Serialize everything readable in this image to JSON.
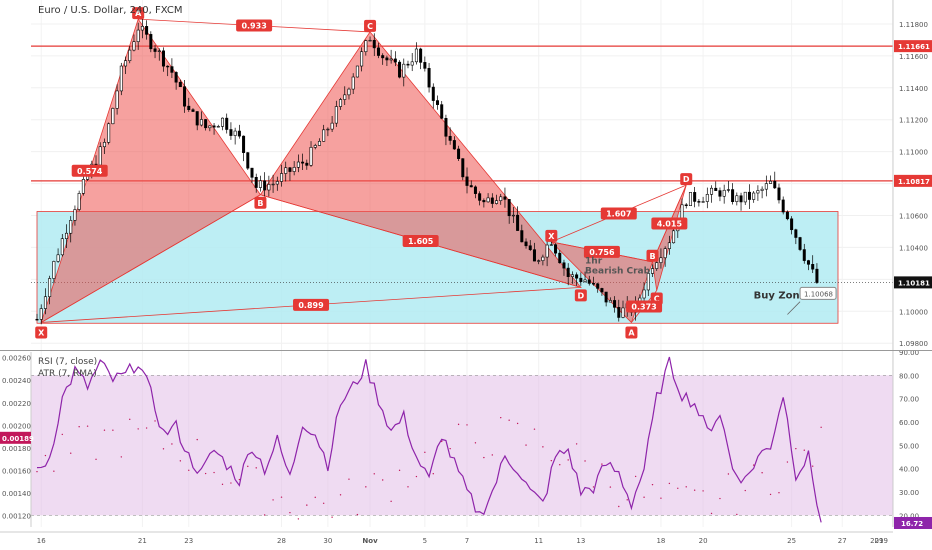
{
  "header": {
    "title": "Euro / U.S. Dollar, 240, FXCM"
  },
  "indicators": {
    "rsi_label": "RSI (7, close)",
    "atr_label": "ATR (7, RMA)"
  },
  "colors": {
    "hline": "#e53935",
    "pattern_fill": "#ef5350",
    "zone_fill": "#b2ebf2",
    "zone_border": "#e53935",
    "rsi_line": "#8e24aa",
    "rsi_band": "#e1bee7",
    "atr_dots": "#c2185b",
    "candle": "#000000"
  },
  "chart_data": [
    {
      "type": "candlestick",
      "title": "Euro / U.S. Dollar, 240, FXCM",
      "x_ticks": [
        "16",
        "21",
        "23",
        "28",
        "30",
        "Nov",
        "5",
        "7",
        "11",
        "13",
        "18",
        "20",
        "25",
        "27",
        "29",
        "2019"
      ],
      "y_ticks": [
        "1.11800",
        "1.11600",
        "1.11400",
        "1.11200",
        "1.11000",
        "1.10800",
        "1.10600",
        "1.10400",
        "1.10200",
        "1.10000",
        "1.09800"
      ],
      "ylim": [
        1.0977,
        1.1195
      ],
      "price_labels": [
        {
          "value": 1.11661,
          "label": "1.11661",
          "kind": "level"
        },
        {
          "value": 1.10817,
          "label": "1.10817",
          "kind": "level"
        },
        {
          "value": 1.10181,
          "label": "1.10181",
          "kind": "current"
        }
      ],
      "horizontal_lines": [
        1.11661,
        1.10817
      ],
      "current_price": 1.10181,
      "buy_zone": {
        "label": "Buy Zone",
        "from": 1.09925,
        "to": 1.10625,
        "x_start_idx": 0,
        "x_end_idx": 190,
        "target_label": "1.10068"
      },
      "pattern_points": [
        {
          "name": "X",
          "idx": 1,
          "price": 1.0993
        },
        {
          "name": "A",
          "idx": 24,
          "price": 1.1183
        },
        {
          "name": "B",
          "idx": 53,
          "price": 1.1073
        },
        {
          "name": "C",
          "idx": 79,
          "price": 1.1175
        },
        {
          "name": "D",
          "idx": 129,
          "price": 1.1015
        },
        {
          "name": "X",
          "idx": 122,
          "price": 1.10435
        },
        {
          "name": "A",
          "idx": 141,
          "price": 1.0993
        },
        {
          "name": "B",
          "idx": 146,
          "price": 1.1031
        },
        {
          "name": "C",
          "idx": 147,
          "price": 1.1013
        },
        {
          "name": "D",
          "idx": 154,
          "price": 1.1079
        }
      ],
      "ratio_labels": [
        "0.933",
        "0.574",
        "1.605",
        "0.899",
        "1.607",
        "0.756",
        "4.015",
        "0.373"
      ],
      "pattern_text": [
        "1hr",
        "Bearish Crab"
      ],
      "close_anchors": [
        [
          0,
          1.0995
        ],
        [
          4,
          1.103
        ],
        [
          8,
          1.106
        ],
        [
          12,
          1.1085
        ],
        [
          16,
          1.1105
        ],
        [
          20,
          1.115
        ],
        [
          24,
          1.1178
        ],
        [
          28,
          1.1165
        ],
        [
          32,
          1.115
        ],
        [
          36,
          1.1125
        ],
        [
          40,
          1.1115
        ],
        [
          44,
          1.112
        ],
        [
          48,
          1.1108
        ],
        [
          52,
          1.1078
        ],
        [
          56,
          1.108
        ],
        [
          60,
          1.1088
        ],
        [
          64,
          1.1095
        ],
        [
          68,
          1.111
        ],
        [
          72,
          1.113
        ],
        [
          76,
          1.1155
        ],
        [
          79,
          1.1172
        ],
        [
          82,
          1.116
        ],
        [
          86,
          1.115
        ],
        [
          90,
          1.1162
        ],
        [
          94,
          1.1135
        ],
        [
          98,
          1.1105
        ],
        [
          102,
          1.108
        ],
        [
          106,
          1.1068
        ],
        [
          110,
          1.1075
        ],
        [
          114,
          1.105
        ],
        [
          118,
          1.103
        ],
        [
          122,
          1.1045
        ],
        [
          126,
          1.1022
        ],
        [
          130,
          1.102
        ],
        [
          134,
          1.101
        ],
        [
          138,
          1.1
        ],
        [
          142,
          1.1002
        ],
        [
          146,
          1.103
        ],
        [
          150,
          1.1045
        ],
        [
          154,
          1.107
        ],
        [
          158,
          1.1072
        ],
        [
          162,
          1.1075
        ],
        [
          166,
          1.107
        ],
        [
          170,
          1.1072
        ],
        [
          174,
          1.108
        ],
        [
          178,
          1.106
        ],
        [
          182,
          1.1035
        ],
        [
          185,
          1.1018
        ]
      ]
    },
    {
      "type": "line",
      "title": "RSI (7, close)",
      "y_ticks": [
        "90.00",
        "80.00",
        "70.00",
        "60.00",
        "50.00",
        "40.00",
        "30.00",
        "20.00"
      ],
      "ylim": [
        15,
        90
      ],
      "band": [
        20,
        80
      ],
      "last_value_label": "16.72",
      "anchors": [
        [
          0,
          38
        ],
        [
          3,
          45
        ],
        [
          6,
          70
        ],
        [
          9,
          82
        ],
        [
          12,
          75
        ],
        [
          15,
          85
        ],
        [
          18,
          78
        ],
        [
          21,
          80
        ],
        [
          24,
          86
        ],
        [
          27,
          72
        ],
        [
          30,
          55
        ],
        [
          33,
          58
        ],
        [
          36,
          45
        ],
        [
          39,
          38
        ],
        [
          42,
          48
        ],
        [
          45,
          42
        ],
        [
          48,
          35
        ],
        [
          51,
          50
        ],
        [
          54,
          40
        ],
        [
          57,
          52
        ],
        [
          60,
          36
        ],
        [
          63,
          60
        ],
        [
          66,
          55
        ],
        [
          69,
          42
        ],
        [
          72,
          68
        ],
        [
          75,
          75
        ],
        [
          78,
          84
        ],
        [
          81,
          70
        ],
        [
          84,
          56
        ],
        [
          87,
          62
        ],
        [
          90,
          45
        ],
        [
          93,
          35
        ],
        [
          96,
          55
        ],
        [
          99,
          42
        ],
        [
          102,
          30
        ],
        [
          105,
          20
        ],
        [
          108,
          30
        ],
        [
          111,
          45
        ],
        [
          114,
          40
        ],
        [
          117,
          30
        ],
        [
          120,
          25
        ],
        [
          123,
          45
        ],
        [
          126,
          48
        ],
        [
          129,
          30
        ],
        [
          132,
          32
        ],
        [
          135,
          42
        ],
        [
          138,
          38
        ],
        [
          141,
          25
        ],
        [
          144,
          40
        ],
        [
          147,
          70
        ],
        [
          150,
          85
        ],
        [
          153,
          72
        ],
        [
          156,
          68
        ],
        [
          159,
          56
        ],
        [
          162,
          64
        ],
        [
          165,
          40
        ],
        [
          168,
          35
        ],
        [
          171,
          45
        ],
        [
          174,
          50
        ],
        [
          177,
          72
        ],
        [
          180,
          38
        ],
        [
          183,
          45
        ],
        [
          186,
          17
        ]
      ]
    },
    {
      "type": "scatter",
      "title": "ATR (7, RMA)",
      "y_ticks": [
        "0.00260",
        "0.00240",
        "0.00220",
        "0.00200",
        "0.00180",
        "0.00160",
        "0.00140",
        "0.00120"
      ],
      "ylim": [
        0.0011,
        0.00265
      ],
      "last_value_label": "0.00189"
    }
  ]
}
